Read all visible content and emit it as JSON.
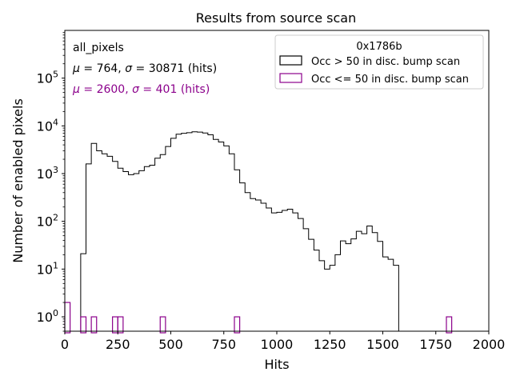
{
  "chart_data": {
    "type": "histogram",
    "title": "Results from source scan",
    "xlabel": "Hits",
    "ylabel": "Number of enabled pixels",
    "xlim": [
      0,
      2000
    ],
    "ylim": [
      0.5,
      1000000
    ],
    "yscale": "log",
    "bin_width": 25,
    "x_ticks": [
      0,
      250,
      500,
      750,
      1000,
      1250,
      1500,
      1750,
      2000
    ],
    "x_tick_labels": [
      "0",
      "250",
      "500",
      "750",
      "1000",
      "1250",
      "1500",
      "1750",
      "2000"
    ],
    "y_ticks": [
      1,
      10,
      100,
      1000,
      10000,
      100000
    ],
    "y_tick_labels": [
      {
        "base": "10",
        "exp": "0"
      },
      {
        "base": "10",
        "exp": "1"
      },
      {
        "base": "10",
        "exp": "2"
      },
      {
        "base": "10",
        "exp": "3"
      },
      {
        "base": "10",
        "exp": "4"
      },
      {
        "base": "10",
        "exp": "5"
      }
    ],
    "series": [
      {
        "name": "Occ > 50 in disc. bump scan",
        "color": "#000000",
        "bin_start": 75,
        "values": [
          21,
          1600,
          4300,
          3000,
          2600,
          2300,
          1800,
          1300,
          1100,
          950,
          1000,
          1150,
          1400,
          1500,
          2100,
          2500,
          3700,
          5500,
          6700,
          7000,
          7200,
          7500,
          7400,
          7100,
          6500,
          5200,
          4600,
          3800,
          2600,
          1200,
          640,
          400,
          300,
          280,
          240,
          190,
          150,
          155,
          170,
          180,
          150,
          115,
          70,
          42,
          25,
          15,
          10,
          12,
          20,
          39,
          34,
          43,
          62,
          55,
          80,
          58,
          38,
          18,
          16,
          12
        ]
      },
      {
        "name": "Occ <= 50 in disc. bump scan",
        "color": "#8b008b",
        "bars": [
          {
            "x": 0,
            "value": 2
          },
          {
            "x": 75,
            "value": 1
          },
          {
            "x": 125,
            "value": 1
          },
          {
            "x": 225,
            "value": 1
          },
          {
            "x": 250,
            "value": 1
          },
          {
            "x": 450,
            "value": 1
          },
          {
            "x": 800,
            "value": 1
          },
          {
            "x": 1800,
            "value": 1
          }
        ]
      }
    ],
    "annotations": [
      {
        "text": "all_pixels",
        "color": "#000000"
      },
      {
        "mu": "764",
        "sigma": "30871",
        "unit": "(hits)",
        "color": "#000000"
      },
      {
        "mu": "2600",
        "sigma": "401",
        "unit": "(hits)",
        "color": "#8b008b"
      }
    ],
    "legend": {
      "title": "0x1786b",
      "placement": "top-right",
      "entries": [
        "Occ > 50 in disc. bump scan",
        "Occ <= 50 in disc. bump scan"
      ]
    }
  }
}
